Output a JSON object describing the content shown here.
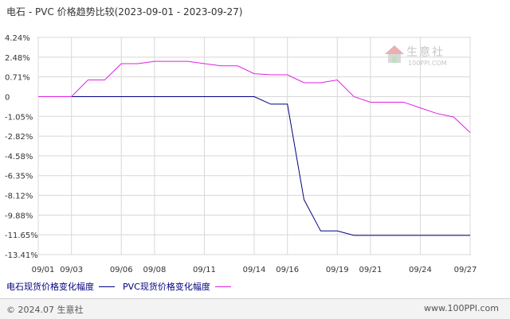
{
  "chart_data": {
    "type": "line",
    "title": "电石 - PVC 价格趋势比较(2023-09-01 - 2023-09-27)",
    "x": [
      "09/01",
      "09/02",
      "09/03",
      "09/04",
      "09/05",
      "09/06",
      "09/07",
      "09/08",
      "09/09",
      "09/10",
      "09/11",
      "09/12",
      "09/13",
      "09/14",
      "09/15",
      "09/16",
      "09/17",
      "09/18",
      "09/19",
      "09/20",
      "09/21",
      "09/22",
      "09/23",
      "09/24",
      "09/25",
      "09/26",
      "09/27"
    ],
    "xticks": [
      "09/01",
      "09/03",
      "09/06",
      "09/08",
      "09/11",
      "09/14",
      "09/16",
      "09/19",
      "09/21",
      "09/24",
      "09/27"
    ],
    "yticks": [
      "4.24%",
      "2.48%",
      "0.71%",
      "0",
      "-1.05%",
      "-2.82%",
      "-4.58%",
      "-6.35%",
      "-8.12%",
      "-9.88%",
      "-11.65%",
      "-13.41%"
    ],
    "ytick_values": [
      4.24,
      2.48,
      0.71,
      0,
      -1.05,
      -2.82,
      -4.58,
      -6.35,
      -8.12,
      -9.88,
      -11.65,
      -13.41
    ],
    "ylim": [
      -13.41,
      4.24
    ],
    "grid": true,
    "legend_position": "bottom-left",
    "series": [
      {
        "name": "电石现货价格变化幅度",
        "color": "#000080",
        "values": [
          0,
          0,
          0,
          0,
          0,
          0,
          0,
          0,
          0,
          0,
          0,
          0,
          0,
          0,
          -0.4,
          -0.4,
          -8.5,
          -11.3,
          -11.3,
          -11.7,
          -11.7,
          -11.7,
          -11.7,
          -11.7,
          -11.7,
          -11.7,
          -11.7
        ]
      },
      {
        "name": "PVC现货价格变化幅度",
        "color": "#e020e0",
        "values": [
          0,
          0,
          0,
          0.6,
          0.6,
          1.9,
          1.9,
          2.1,
          2.1,
          2.1,
          1.9,
          1.7,
          1.7,
          1.0,
          0.9,
          0.9,
          0.5,
          0.5,
          0.6,
          0,
          -0.3,
          -0.3,
          -0.3,
          -0.6,
          -0.9,
          -1.1,
          -2.5
        ]
      }
    ]
  },
  "legend": {
    "items": [
      {
        "label": "电石现货价格变化幅度",
        "color": "#000080"
      },
      {
        "label": "PVC现货价格变化幅度",
        "color": "#e020e0"
      }
    ]
  },
  "watermark": {
    "name": "生意社",
    "url": "100PPI.COM"
  },
  "footer": {
    "left": "© 2024.07 生意社",
    "right": "www.100PPI.com"
  }
}
